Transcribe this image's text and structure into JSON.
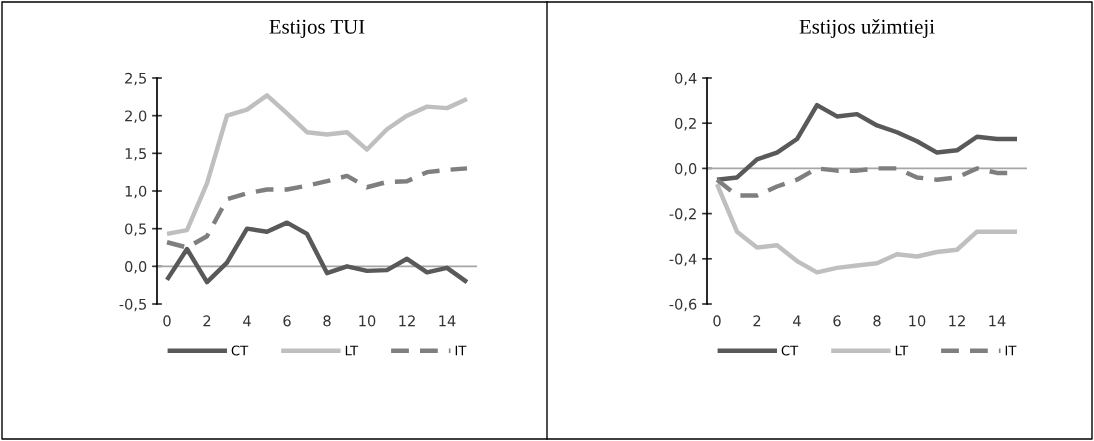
{
  "chart_data": [
    {
      "type": "line",
      "title": "Estijos TUI",
      "x": [
        0,
        1,
        2,
        3,
        4,
        5,
        6,
        7,
        8,
        9,
        10,
        11,
        12,
        13,
        14,
        15
      ],
      "xlim": [
        -0.5,
        15.5
      ],
      "xticks": [
        0,
        2,
        4,
        6,
        8,
        10,
        12,
        14
      ],
      "ylim": [
        -0.5,
        2.5
      ],
      "yticks": [
        {
          "value": -0.5,
          "label": "-0,5"
        },
        {
          "value": 0,
          "label": "0,0"
        },
        {
          "value": 0.5,
          "label": "0,5"
        },
        {
          "value": 1,
          "label": "1,0"
        },
        {
          "value": 1.5,
          "label": "1,5"
        },
        {
          "value": 2,
          "label": "2,0"
        },
        {
          "value": 2.5,
          "label": "2,5"
        }
      ],
      "grid": false,
      "legend": "bottom",
      "marker": "none",
      "ref_lines": [
        {
          "axis": "y",
          "value": 0,
          "color": "#a6a6a6",
          "line_style": "solid"
        }
      ],
      "series": [
        {
          "name": "CT",
          "color": "#595959",
          "line_style": "solid",
          "values": [
            -0.18,
            0.23,
            -0.21,
            0.05,
            0.5,
            0.46,
            0.58,
            0.43,
            -0.09,
            0.0,
            -0.06,
            -0.05,
            0.1,
            -0.08,
            -0.02,
            -0.21
          ]
        },
        {
          "name": "LT",
          "color": "#bfbfbf",
          "line_style": "solid",
          "values": [
            0.43,
            0.48,
            1.1,
            2.0,
            2.08,
            2.27,
            2.03,
            1.78,
            1.75,
            1.78,
            1.55,
            1.82,
            2.0,
            2.12,
            2.1,
            2.22
          ]
        },
        {
          "name": "IT",
          "color": "#7f7f7f",
          "line_style": "dashed",
          "values": [
            0.32,
            0.25,
            0.4,
            0.89,
            0.97,
            1.02,
            1.02,
            1.07,
            1.13,
            1.2,
            1.05,
            1.12,
            1.13,
            1.25,
            1.28,
            1.3
          ]
        }
      ]
    },
    {
      "type": "line",
      "title": "Estijos užimtieji",
      "x": [
        0,
        1,
        2,
        3,
        4,
        5,
        6,
        7,
        8,
        9,
        10,
        11,
        12,
        13,
        14,
        15
      ],
      "xlim": [
        -0.5,
        15.5
      ],
      "xticks": [
        0,
        2,
        4,
        6,
        8,
        10,
        12,
        14
      ],
      "ylim": [
        -0.6,
        0.4
      ],
      "yticks": [
        {
          "value": -0.6,
          "label": "-0,6"
        },
        {
          "value": -0.4,
          "label": "-0,4"
        },
        {
          "value": -0.2,
          "label": "-0,2"
        },
        {
          "value": 0,
          "label": "0,0"
        },
        {
          "value": 0.2,
          "label": "0,2"
        },
        {
          "value": 0.4,
          "label": "0,4"
        }
      ],
      "grid": false,
      "legend": "bottom",
      "marker": "none",
      "ref_lines": [
        {
          "axis": "y",
          "value": 0,
          "color": "#a6a6a6",
          "line_style": "solid"
        }
      ],
      "series": [
        {
          "name": "CT",
          "color": "#595959",
          "line_style": "solid",
          "values": [
            -0.05,
            -0.04,
            0.04,
            0.07,
            0.13,
            0.28,
            0.23,
            0.24,
            0.19,
            0.16,
            0.12,
            0.07,
            0.08,
            0.14,
            0.13,
            0.13
          ]
        },
        {
          "name": "LT",
          "color": "#bfbfbf",
          "line_style": "solid",
          "values": [
            -0.07,
            -0.28,
            -0.35,
            -0.34,
            -0.41,
            -0.46,
            -0.44,
            -0.43,
            -0.42,
            -0.38,
            -0.39,
            -0.37,
            -0.36,
            -0.28,
            -0.28,
            -0.28
          ]
        },
        {
          "name": "IT",
          "color": "#7f7f7f",
          "line_style": "dashed",
          "values": [
            -0.05,
            -0.12,
            -0.12,
            -0.08,
            -0.05,
            0.0,
            -0.01,
            -0.01,
            0.0,
            0.0,
            -0.04,
            -0.05,
            -0.04,
            0.0,
            -0.02,
            -0.02
          ]
        }
      ]
    }
  ]
}
